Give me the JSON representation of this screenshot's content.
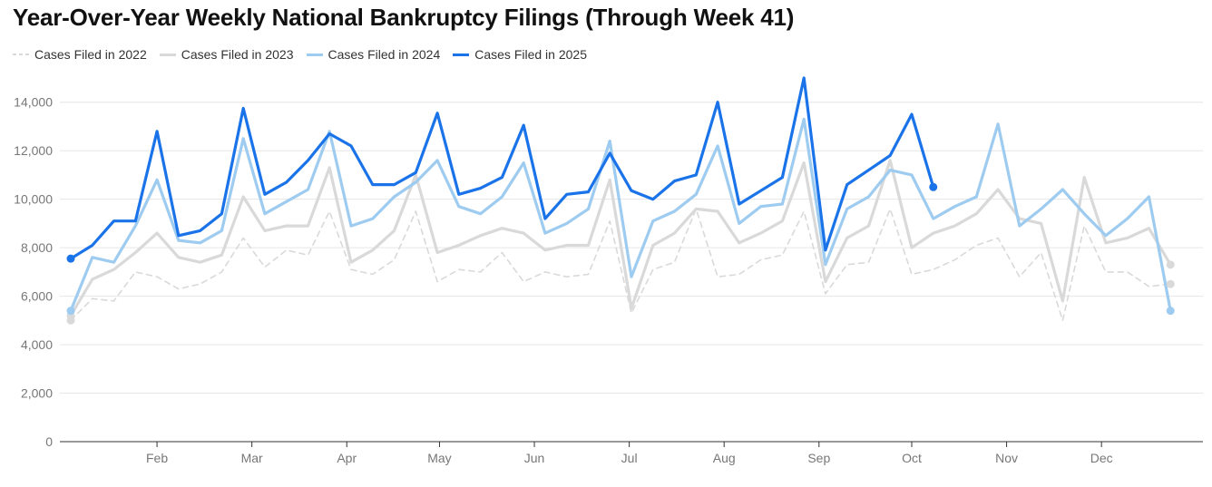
{
  "chart_data": {
    "type": "line",
    "title": "Year-Over-Year Weekly National Bankruptcy Filings (Through Week 41)",
    "xlabel": "",
    "ylabel": "",
    "ylim": [
      0,
      15000
    ],
    "yticks": [
      0,
      2000,
      4000,
      6000,
      8000,
      10000,
      12000,
      14000
    ],
    "ytick_labels": [
      "0",
      "2,000",
      "4,000",
      "6,000",
      "8,000",
      "10,000",
      "12,000",
      "14,000"
    ],
    "x_axis": {
      "weeks": 53,
      "month_labels": [
        {
          "label": "Feb",
          "week": 5
        },
        {
          "label": "Mar",
          "week": 9.4
        },
        {
          "label": "Apr",
          "week": 13.8
        },
        {
          "label": "May",
          "week": 18.1
        },
        {
          "label": "Jun",
          "week": 22.5
        },
        {
          "label": "Jul",
          "week": 26.9
        },
        {
          "label": "Aug",
          "week": 31.3
        },
        {
          "label": "Sep",
          "week": 35.7
        },
        {
          "label": "Oct",
          "week": 40
        },
        {
          "label": "Nov",
          "week": 44.4
        },
        {
          "label": "Dec",
          "week": 48.8
        }
      ]
    },
    "grid": true,
    "legend_position": "top-left",
    "series": [
      {
        "name": "Cases Filed in 2022",
        "color": "#d9d9d9",
        "style": "dashed",
        "values": [
          5000,
          5900,
          5800,
          7000,
          6800,
          6300,
          6500,
          7000,
          8400,
          7200,
          7900,
          7700,
          9500,
          7100,
          6900,
          7500,
          9500,
          6600,
          7100,
          7000,
          7800,
          6600,
          7000,
          6800,
          6900,
          9100,
          5300,
          7100,
          7400,
          9600,
          6800,
          6900,
          7500,
          7700,
          9500,
          6100,
          7300,
          7400,
          9600,
          6900,
          7100,
          7500,
          8100,
          8400,
          6800,
          7800,
          5000,
          8900,
          7000,
          7000,
          6400,
          6500
        ]
      },
      {
        "name": "Cases Filed in 2023",
        "color": "#d9d9d9",
        "style": "solid",
        "values": [
          5200,
          6700,
          7100,
          7800,
          8600,
          7600,
          7400,
          7700,
          10100,
          8700,
          8900,
          8900,
          11300,
          7400,
          7900,
          8700,
          11000,
          7800,
          8100,
          8500,
          8800,
          8600,
          7900,
          8100,
          8100,
          10800,
          5500,
          8100,
          8600,
          9600,
          9500,
          8200,
          8600,
          9100,
          11500,
          6600,
          8400,
          8900,
          11600,
          8000,
          8600,
          8900,
          9400,
          10400,
          9200,
          9000,
          5800,
          10900,
          8200,
          8400,
          8800,
          7300
        ]
      },
      {
        "name": "Cases Filed in 2024",
        "color": "#9ecbf0",
        "style": "solid",
        "values": [
          5400,
          7600,
          7400,
          8900,
          10800,
          8300,
          8200,
          8700,
          12500,
          9400,
          9900,
          10400,
          12800,
          8900,
          9200,
          10100,
          10700,
          11600,
          9700,
          9400,
          10100,
          11500,
          8600,
          9000,
          9600,
          12400,
          6800,
          9100,
          9500,
          10200,
          12200,
          9000,
          9700,
          9800,
          13300,
          7300,
          9600,
          10100,
          11200,
          11000,
          9200,
          9700,
          10100,
          13100,
          8900,
          9600,
          10400,
          9400,
          8500,
          9200,
          10100,
          5400
        ]
      },
      {
        "name": "Cases Filed in 2025",
        "color": "#1a73e8",
        "style": "solid",
        "values": [
          7550,
          8100,
          9100,
          9100,
          12800,
          8500,
          8700,
          9400,
          13750,
          10200,
          10700,
          11600,
          12700,
          12200,
          10600,
          10600,
          11100,
          13550,
          10200,
          10450,
          10900,
          13050,
          9200,
          10200,
          10300,
          11900,
          10350,
          10000,
          10750,
          11000,
          14000,
          9800,
          10350,
          10900,
          15000,
          7900,
          10600,
          11200,
          11800,
          13500,
          10500
        ]
      }
    ]
  }
}
